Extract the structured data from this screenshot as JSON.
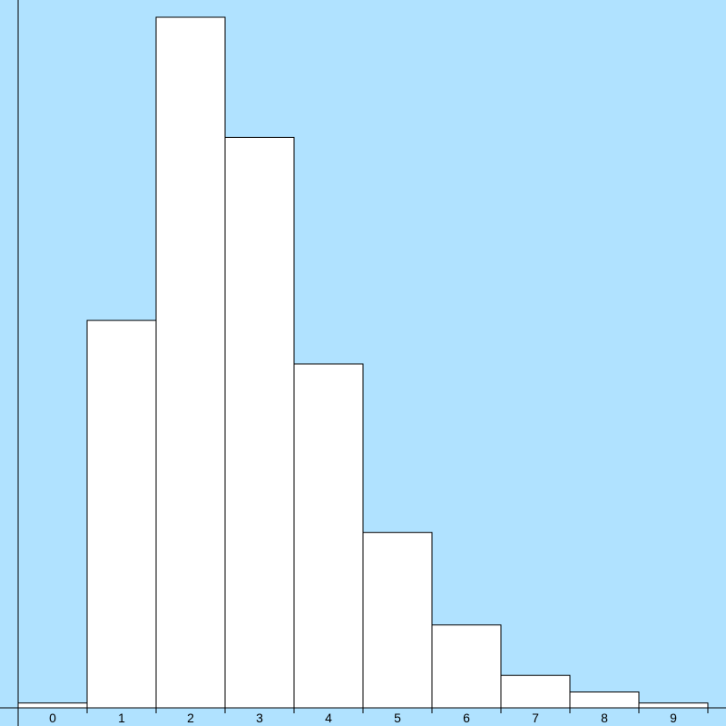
{
  "chart_data": {
    "type": "bar",
    "categories": [
      "0",
      "1",
      "2",
      "3",
      "4",
      "5",
      "6",
      "7",
      "8",
      "9"
    ],
    "values": [
      0.007,
      0.561,
      1.0,
      0.826,
      0.498,
      0.254,
      0.12,
      0.047,
      0.023,
      0.007
    ],
    "title": "",
    "xlabel": "",
    "ylabel": "",
    "ylim": [
      0,
      1.0
    ],
    "grid": false,
    "colors": {
      "background": "#b0e2ff",
      "bar_fill": "#ffffff",
      "bar_stroke": "#000000",
      "axis": "#000000"
    }
  }
}
